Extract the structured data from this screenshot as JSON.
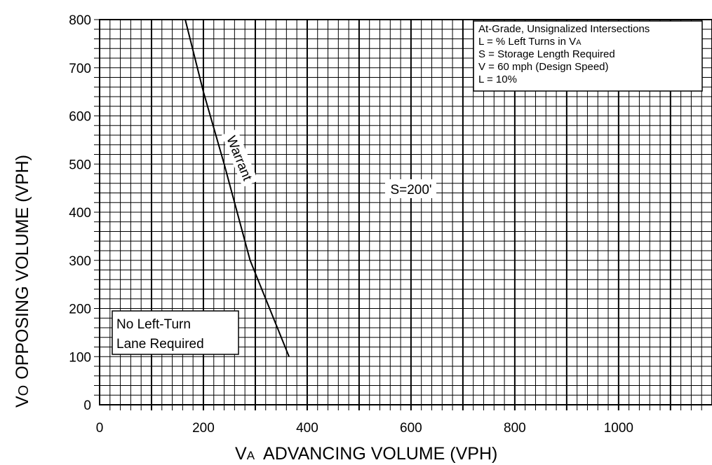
{
  "chart_data": {
    "type": "line",
    "xlabel_sub": "A",
    "xlabel_main": "V",
    "xlabel_rest": "ADVANCING VOLUME (VPH)",
    "ylabel_main": "V",
    "ylabel_sub": "O",
    "ylabel_rest": "OPPOSING VOLUME (VPH)",
    "xlim": [
      0,
      1180
    ],
    "ylim": [
      0,
      800
    ],
    "x_ticks": [
      "0",
      "200",
      "400",
      "600",
      "800",
      "1000"
    ],
    "x_tick_values": [
      0,
      200,
      400,
      600,
      800,
      1000
    ],
    "y_ticks": [
      "0",
      "100",
      "200",
      "300",
      "400",
      "500",
      "600",
      "700",
      "800"
    ],
    "y_tick_values": [
      0,
      100,
      200,
      300,
      400,
      500,
      600,
      700,
      800
    ],
    "grid": true,
    "minor_grid_step_x": 20,
    "minor_grid_step_y": 20,
    "major_grid_step_x": 100,
    "series": [
      {
        "x": [
          165,
          200,
          240,
          290,
          365
        ],
        "y": [
          800,
          650,
          500,
          300,
          100
        ]
      }
    ],
    "annotations": {
      "warrant_label": "Warrant",
      "storage_label": "S=200'",
      "no_lane_line1": "No Left-Turn",
      "no_lane_line2": "Lane Required"
    },
    "info_box": {
      "line1": "At-Grade, Unsignalized Intersections",
      "line2_main": "L = % Left Turns in V",
      "line2_sub": "A",
      "line3": "S = Storage Length Required",
      "line4": "V = 60 mph (Design Speed)",
      "line5": "L = 10%"
    }
  }
}
